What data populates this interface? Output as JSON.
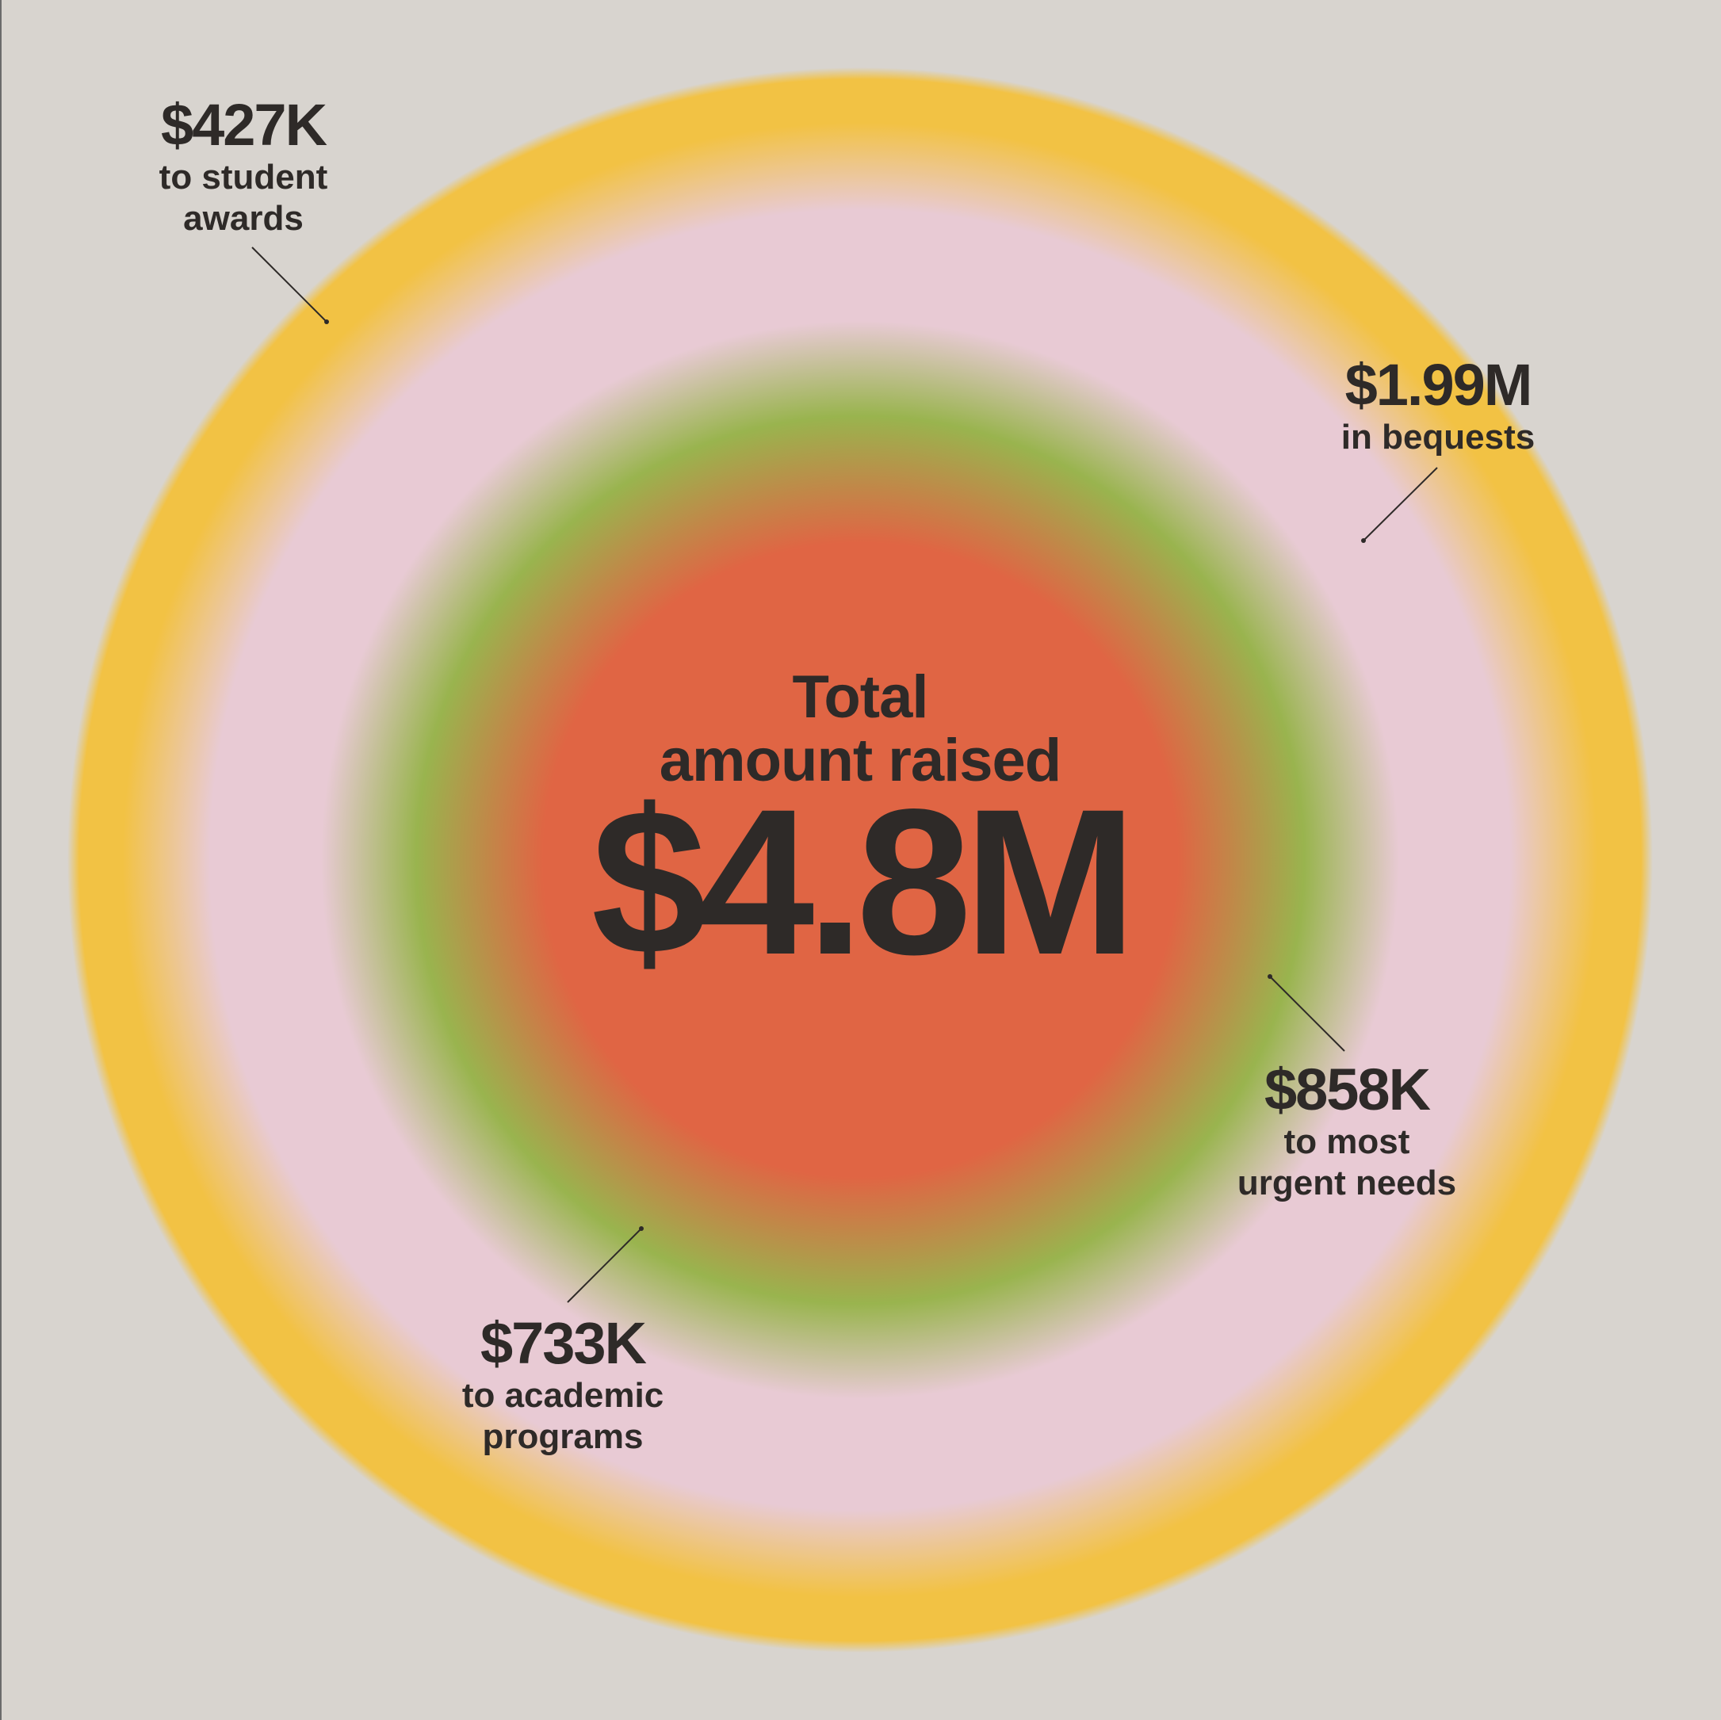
{
  "chart_data": {
    "type": "radial-gradient-rings",
    "title_line1": "Total",
    "title_line2": "amount raised",
    "total": "$4.8M",
    "segments": [
      {
        "amount": "$427K",
        "desc_line1": "to student",
        "desc_line2": "awards",
        "ring": "outer",
        "value": 427000
      },
      {
        "amount": "$1.99M",
        "desc_line1": "in bequests",
        "desc_line2": "",
        "ring": "outer",
        "value": 1990000
      },
      {
        "amount": "$858K",
        "desc_line1": "to most",
        "desc_line2": "urgent needs",
        "ring": "inner",
        "value": 858000
      },
      {
        "amount": "$733K",
        "desc_line1": "to academic",
        "desc_line2": "programs",
        "ring": "inner",
        "value": 733000
      }
    ],
    "colors": {
      "background": "#d8d4cf",
      "outer_ring": "#f2c244",
      "pink_band": "#e8cad4",
      "green_band": "#99b44e",
      "center": "#e06544",
      "text": "#2e2a28"
    }
  }
}
